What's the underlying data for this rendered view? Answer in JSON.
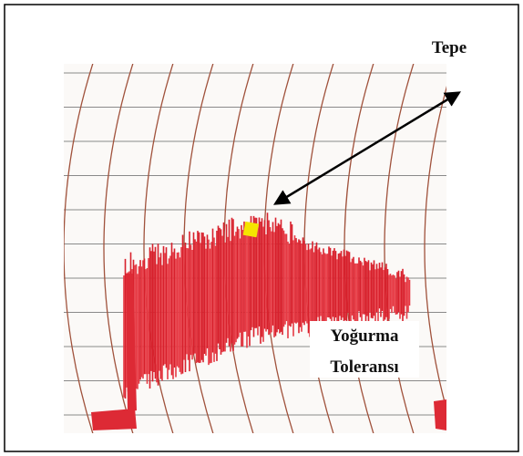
{
  "labels": {
    "peak": "Tepe",
    "tolerance": [
      "Yoğurma",
      "Toleransı"
    ]
  }
}
